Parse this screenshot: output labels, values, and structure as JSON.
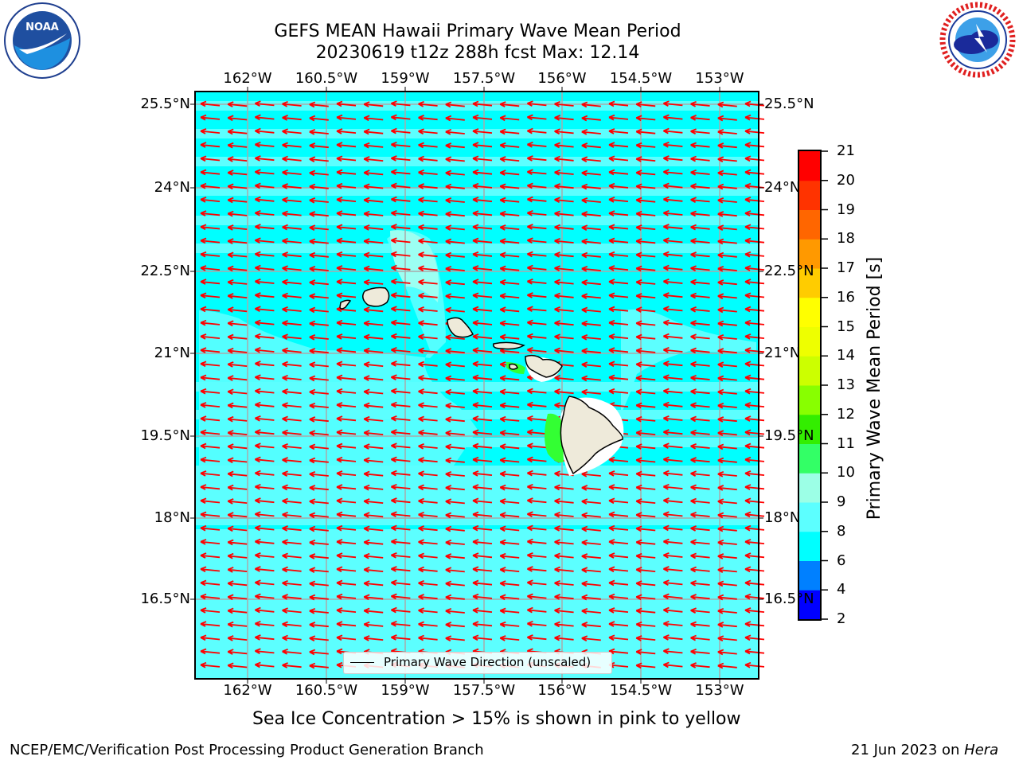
{
  "header": {
    "title_line1": "GEFS MEAN Hawaii Primary Wave Mean Period",
    "title_line2": "20230619 t12z 288h fcst   Max: 12.14"
  },
  "logos": {
    "left": "NOAA",
    "right": "NATIONAL WEATHER SERVICE"
  },
  "map": {
    "lon_ticks": [
      "162°W",
      "160.5°W",
      "159°W",
      "157.5°W",
      "156°W",
      "154.5°W",
      "153°W"
    ],
    "lat_ticks": [
      "25.5°N",
      "24°N",
      "22.5°N",
      "21°N",
      "19.5°N",
      "18°N",
      "16.5°N"
    ],
    "legend_label": "Primary Wave Direction (unscaled)",
    "colors": {
      "ocean_main": "#00FFFF",
      "ocean_light": "#5CFFFF",
      "ocean_pale": "#9CFFF2",
      "land": "#EEEADA",
      "arrow": "#FF0000",
      "green": "#33FF33"
    }
  },
  "colorbar": {
    "label": "Primary Wave Mean Period [s]",
    "ticks": [
      "2",
      "4",
      "6",
      "8",
      "9",
      "10",
      "11",
      "12",
      "13",
      "14",
      "15",
      "16",
      "17",
      "18",
      "19",
      "20",
      "21"
    ],
    "colors": [
      "#0000FF",
      "#0080FF",
      "#00FFFF",
      "#5CFFFF",
      "#9CFFE6",
      "#33FF66",
      "#33EE00",
      "#88FF00",
      "#CCFF00",
      "#EEFF00",
      "#FFFF00",
      "#FFCC00",
      "#FF9900",
      "#FF6600",
      "#FF3300",
      "#FF0000"
    ]
  },
  "notes": {
    "sea_ice": "Sea Ice Concentration > 15% is shown in pink to yellow"
  },
  "footer": {
    "left": "NCEP/EMC/Verification Post Processing Product Generation Branch",
    "right_prefix": "21 Jun 2023 on ",
    "right_machine": "Hera"
  }
}
